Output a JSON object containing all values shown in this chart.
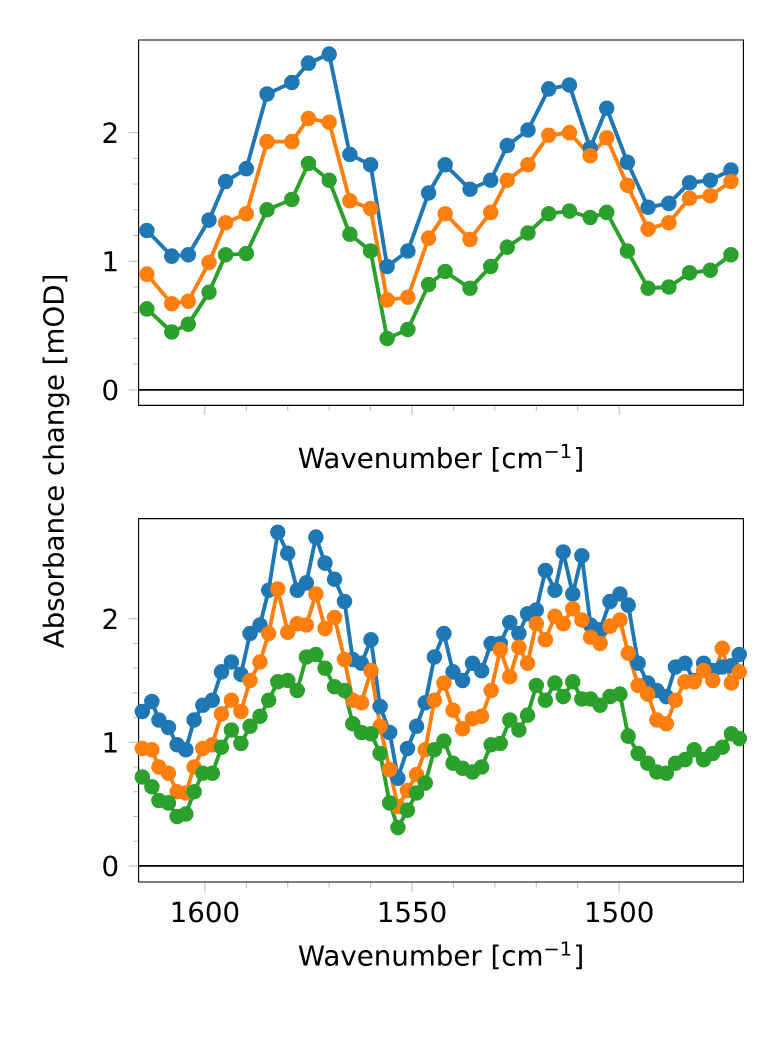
{
  "chart_data": [
    {
      "type": "line",
      "xlabel": "Wavenumber [cm$^{−1}$]",
      "ylabel": "Absorbance change [mOD]",
      "marker": "circle",
      "tick_labels": "y",
      "x": [
        1614,
        1608,
        1604,
        1599,
        1595,
        1590,
        1585,
        1579,
        1575,
        1570,
        1565,
        1560,
        1556,
        1551,
        1546,
        1542,
        1536,
        1531,
        1527,
        1522,
        1517,
        1512,
        1507,
        1503,
        1498,
        1493,
        1488,
        1483,
        1478,
        1473
      ],
      "series": [
        {
          "color": "#1f77b4",
          "values": [
            1.24,
            1.04,
            1.05,
            1.32,
            1.62,
            1.72,
            2.3,
            2.39,
            2.54,
            2.61,
            1.83,
            1.75,
            0.96,
            1.08,
            1.53,
            1.75,
            1.56,
            1.63,
            1.9,
            2.02,
            2.34,
            2.37,
            1.88,
            2.19,
            1.77,
            1.42,
            1.45,
            1.61,
            1.63,
            1.71
          ]
        },
        {
          "color": "#ff7f0e",
          "values": [
            0.9,
            0.67,
            0.69,
            0.99,
            1.3,
            1.37,
            1.93,
            1.93,
            2.11,
            2.08,
            1.47,
            1.41,
            0.7,
            0.72,
            1.18,
            1.37,
            1.17,
            1.38,
            1.63,
            1.75,
            1.98,
            2.0,
            1.82,
            1.96,
            1.59,
            1.25,
            1.3,
            1.49,
            1.51,
            1.62
          ]
        },
        {
          "color": "#2ca02c",
          "values": [
            0.63,
            0.45,
            0.51,
            0.76,
            1.05,
            1.06,
            1.4,
            1.48,
            1.76,
            1.63,
            1.21,
            1.08,
            0.4,
            0.47,
            0.82,
            0.92,
            0.79,
            0.96,
            1.11,
            1.22,
            1.37,
            1.39,
            1.34,
            1.38,
            1.08,
            0.79,
            0.8,
            0.91,
            0.93,
            1.05
          ]
        }
      ],
      "xlim": [
        1616,
        1470
      ],
      "xticks": [
        1600,
        1550,
        1500
      ],
      "ylim": [
        -0.12,
        2.72
      ],
      "yticks": [
        0,
        1,
        2
      ],
      "ref_lines": [
        {
          "axis": "y",
          "value": 0,
          "color": "#000000"
        }
      ]
    },
    {
      "type": "line",
      "xlabel": "Wavenumber [cm$^{−1}$]",
      "marker": "circle",
      "x": [
        1615.1,
        1612.8,
        1611.1,
        1608.8,
        1606.7,
        1604.6,
        1602.6,
        1600.5,
        1598.2,
        1596.0,
        1593.6,
        1591.3,
        1589.1,
        1586.7,
        1584.6,
        1582.4,
        1580.0,
        1577.7,
        1575.5,
        1573.2,
        1571.0,
        1568.7,
        1566.3,
        1564.3,
        1562.2,
        1559.9,
        1557.7,
        1555.4,
        1553.4,
        1551.1,
        1548.9,
        1546.8,
        1544.6,
        1542.3,
        1540.1,
        1537.8,
        1535.4,
        1533.2,
        1530.9,
        1528.7,
        1526.4,
        1524.2,
        1522.1,
        1520.0,
        1517.8,
        1515.5,
        1513.5,
        1511.2,
        1509.0,
        1506.9,
        1504.6,
        1502.2,
        1499.8,
        1497.8,
        1495.4,
        1493.1,
        1490.9,
        1488.6,
        1486.4,
        1484.1,
        1481.9,
        1479.6,
        1477.4,
        1475.1,
        1472.9,
        1471.0
      ],
      "series": [
        {
          "color": "#1f77b4",
          "values": [
            1.25,
            1.33,
            1.18,
            1.12,
            0.98,
            0.94,
            1.18,
            1.3,
            1.34,
            1.57,
            1.65,
            1.55,
            1.88,
            1.95,
            2.23,
            2.7,
            2.53,
            2.23,
            2.29,
            2.66,
            2.45,
            2.32,
            2.14,
            1.67,
            1.64,
            1.83,
            1.29,
            1.08,
            0.71,
            0.95,
            1.13,
            1.32,
            1.69,
            1.88,
            1.57,
            1.5,
            1.64,
            1.58,
            1.8,
            1.8,
            1.97,
            1.88,
            2.04,
            2.07,
            2.39,
            2.23,
            2.54,
            2.2,
            2.51,
            1.95,
            1.91,
            2.14,
            2.2,
            2.11,
            1.64,
            1.48,
            1.42,
            1.37,
            1.61,
            1.64,
            1.5,
            1.64,
            1.58,
            1.61,
            1.62,
            1.71
          ]
        },
        {
          "color": "#ff7f0e",
          "values": [
            0.95,
            0.94,
            0.8,
            0.75,
            0.6,
            0.59,
            0.8,
            0.95,
            0.98,
            1.23,
            1.34,
            1.25,
            1.5,
            1.65,
            1.88,
            2.24,
            1.89,
            1.96,
            1.95,
            2.2,
            1.92,
            2.01,
            1.67,
            1.34,
            1.32,
            1.58,
            1.13,
            0.78,
            0.48,
            0.61,
            0.74,
            0.94,
            1.34,
            1.48,
            1.26,
            1.11,
            1.19,
            1.21,
            1.42,
            1.75,
            1.53,
            1.77,
            1.64,
            1.96,
            1.83,
            2.02,
            1.96,
            2.08,
            1.99,
            1.85,
            1.8,
            1.94,
            1.99,
            1.72,
            1.46,
            1.39,
            1.18,
            1.15,
            1.34,
            1.49,
            1.49,
            1.58,
            1.5,
            1.76,
            1.48,
            1.57
          ]
        },
        {
          "color": "#2ca02c",
          "values": [
            0.72,
            0.64,
            0.53,
            0.51,
            0.4,
            0.42,
            0.6,
            0.75,
            0.75,
            0.96,
            1.1,
            0.99,
            1.13,
            1.21,
            1.34,
            1.49,
            1.5,
            1.42,
            1.69,
            1.71,
            1.6,
            1.45,
            1.42,
            1.15,
            1.08,
            1.07,
            0.91,
            0.51,
            0.31,
            0.45,
            0.59,
            0.67,
            0.94,
            1.01,
            0.83,
            0.79,
            0.76,
            0.8,
            0.98,
            0.99,
            1.18,
            1.1,
            1.22,
            1.46,
            1.34,
            1.48,
            1.37,
            1.49,
            1.35,
            1.35,
            1.3,
            1.37,
            1.39,
            1.05,
            0.91,
            0.83,
            0.76,
            0.75,
            0.83,
            0.86,
            0.94,
            0.86,
            0.91,
            0.96,
            1.07,
            1.03
          ]
        }
      ],
      "xlim": [
        1616,
        1470
      ],
      "xticks": [
        1600,
        1550,
        1500
      ],
      "ylim": [
        -0.13,
        2.81
      ],
      "yticks": [
        0,
        1,
        2
      ],
      "ref_lines": [
        {
          "axis": "y",
          "value": 0,
          "color": "#000000"
        }
      ]
    }
  ]
}
